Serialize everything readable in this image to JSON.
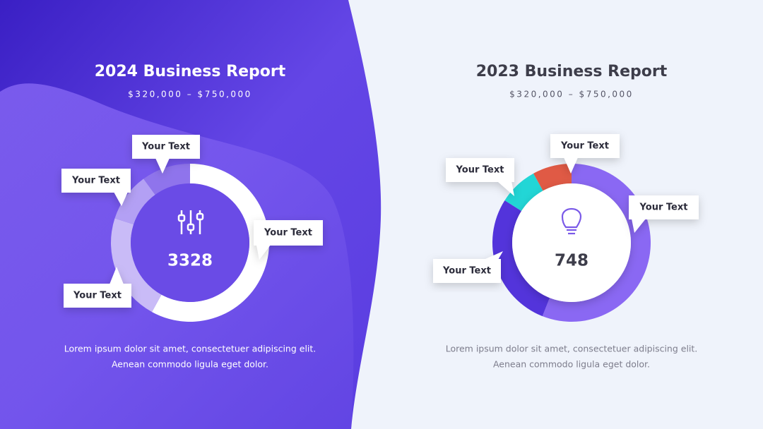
{
  "chart_data": [
    {
      "type": "pie",
      "title": "2024 Business Report",
      "subtitle": "$320,000 – $750,000",
      "center_value": 3328,
      "description": [
        "Lorem ipsum dolor sit amet, consectetuer adipiscing elit.",
        "Aenean commodo ligula eget dolor."
      ],
      "categories": [
        "Your Text",
        "Your Text",
        "Your Text",
        "Your Text"
      ],
      "values": [
        58,
        22,
        10,
        10
      ],
      "colors": [
        "#ffffff",
        "#c9bbf7",
        "#b3a0f4",
        "#8f74ec"
      ]
    },
    {
      "type": "pie",
      "title": "2023 Business Report",
      "subtitle": "$320,000 – $750,000",
      "center_value": 748,
      "description": [
        "Lorem ipsum dolor sit amet, consectetuer adipiscing elit.",
        "Aenean commodo ligula eget dolor."
      ],
      "categories": [
        "Your Text",
        "Your Text",
        "Your Text",
        "Your Text"
      ],
      "values": [
        56,
        28,
        8,
        8
      ],
      "colors": [
        "#8a68f3",
        "#5334db",
        "#22d6d6",
        "#e05a45"
      ]
    }
  ]
}
